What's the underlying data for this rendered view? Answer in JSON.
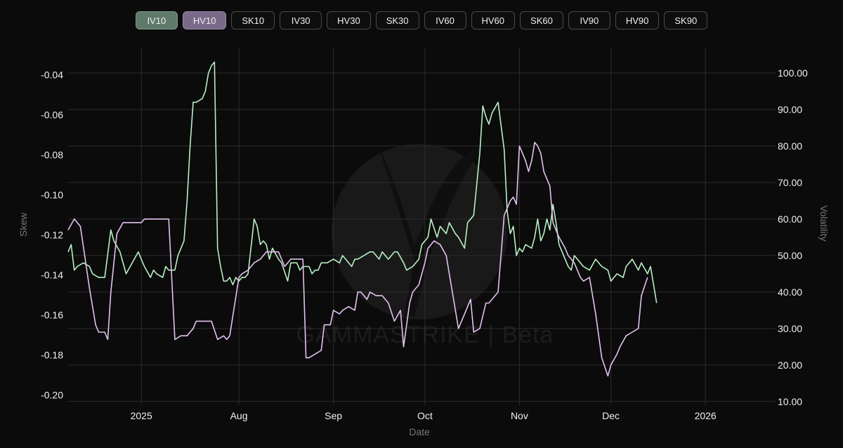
{
  "toolbar": {
    "buttons": [
      {
        "label": "IV10",
        "state": "active-iv"
      },
      {
        "label": "HV10",
        "state": "active-hv"
      },
      {
        "label": "SK10",
        "state": ""
      },
      {
        "label": "IV30",
        "state": ""
      },
      {
        "label": "HV30",
        "state": ""
      },
      {
        "label": "SK30",
        "state": ""
      },
      {
        "label": "IV60",
        "state": ""
      },
      {
        "label": "HV60",
        "state": ""
      },
      {
        "label": "SK60",
        "state": ""
      },
      {
        "label": "IV90",
        "state": ""
      },
      {
        "label": "HV90",
        "state": ""
      },
      {
        "label": "SK90",
        "state": ""
      }
    ]
  },
  "watermark": {
    "text": "GAMMASTRIKE | Beta"
  },
  "colors": {
    "background": "#0b0b0b",
    "grid": "#2c2c2c",
    "iv10": "#b8f0c4",
    "hv10": "#e3c2f0",
    "active_iv": "#5f7a6a",
    "active_hv": "#7a6a8a"
  },
  "chart_data": {
    "type": "line",
    "xlabel": "Date",
    "y_left": {
      "label": "Skew",
      "ticks": [
        "-0.04",
        "-0.06",
        "-0.08",
        "-0.10",
        "-0.12",
        "-0.14",
        "-0.16",
        "-0.18",
        "-0.20"
      ],
      "range": [
        -0.205,
        -0.03
      ]
    },
    "y_right": {
      "label": "Volatility",
      "ticks": [
        "100.00",
        "90.00",
        "80.00",
        "70.00",
        "60.00",
        "50.00",
        "40.00",
        "30.00",
        "20.00",
        "10.00"
      ],
      "range": [
        9,
        105
      ]
    },
    "x_ticks": [
      {
        "label": "2025",
        "date": "2025-06-30"
      },
      {
        "label": "Aug",
        "date": "2025-08-01"
      },
      {
        "label": "Sep",
        "date": "2025-09-01"
      },
      {
        "label": "Oct",
        "date": "2025-10-01"
      },
      {
        "label": "Nov",
        "date": "2025-11-01"
      },
      {
        "label": "Dec",
        "date": "2025-12-01"
      },
      {
        "label": "2026",
        "date": "2026-01-01"
      }
    ],
    "x_range": [
      "2025-06-06",
      "2026-01-24"
    ],
    "grid": true,
    "series": [
      {
        "name": "IV10",
        "axis": "right",
        "x": [
          "2025-06-06",
          "2025-06-07",
          "2025-06-08",
          "2025-06-09",
          "2025-06-11",
          "2025-06-13",
          "2025-06-14",
          "2025-06-16",
          "2025-06-18",
          "2025-06-20",
          "2025-06-21",
          "2025-06-23",
          "2025-06-25",
          "2025-06-27",
          "2025-06-29",
          "2025-07-01",
          "2025-07-03",
          "2025-07-04",
          "2025-07-05",
          "2025-07-07",
          "2025-07-08",
          "2025-07-09",
          "2025-07-11",
          "2025-07-12",
          "2025-07-14",
          "2025-07-15",
          "2025-07-16",
          "2025-07-17",
          "2025-07-18",
          "2025-07-20",
          "2025-07-21",
          "2025-07-22",
          "2025-07-23",
          "2025-07-24",
          "2025-07-25",
          "2025-07-26",
          "2025-07-27",
          "2025-07-28",
          "2025-07-29",
          "2025-07-30",
          "2025-07-31",
          "2025-08-01",
          "2025-08-02",
          "2025-08-03",
          "2025-08-04",
          "2025-08-06",
          "2025-08-07",
          "2025-08-08",
          "2025-08-09",
          "2025-08-10",
          "2025-08-11",
          "2025-08-12",
          "2025-08-14",
          "2025-08-15",
          "2025-08-17",
          "2025-08-18",
          "2025-08-20",
          "2025-08-21",
          "2025-08-22",
          "2025-08-24",
          "2025-08-25",
          "2025-08-26",
          "2025-08-27",
          "2025-08-28",
          "2025-08-30",
          "2025-09-01",
          "2025-09-03",
          "2025-09-04",
          "2025-09-05",
          "2025-09-07",
          "2025-09-08",
          "2025-09-09",
          "2025-09-11",
          "2025-09-13",
          "2025-09-14",
          "2025-09-16",
          "2025-09-17",
          "2025-09-19",
          "2025-09-21",
          "2025-09-22",
          "2025-09-24",
          "2025-09-25",
          "2025-09-27",
          "2025-09-29",
          "2025-09-30",
          "2025-10-02",
          "2025-10-03",
          "2025-10-05",
          "2025-10-06",
          "2025-10-08",
          "2025-10-09",
          "2025-10-11",
          "2025-10-12",
          "2025-10-14",
          "2025-10-15",
          "2025-10-17",
          "2025-10-19",
          "2025-10-20",
          "2025-10-21",
          "2025-10-22",
          "2025-10-23",
          "2025-10-25",
          "2025-10-27",
          "2025-10-28",
          "2025-10-29",
          "2025-10-30",
          "2025-10-31",
          "2025-11-01",
          "2025-11-02",
          "2025-11-03",
          "2025-11-05",
          "2025-11-06",
          "2025-11-07",
          "2025-11-08",
          "2025-11-09",
          "2025-11-10",
          "2025-11-11",
          "2025-11-12",
          "2025-11-13",
          "2025-11-14",
          "2025-11-16",
          "2025-11-17",
          "2025-11-18",
          "2025-11-19",
          "2025-11-21",
          "2025-11-22",
          "2025-11-24",
          "2025-11-26",
          "2025-11-28",
          "2025-11-30",
          "2025-12-01",
          "2025-12-03",
          "2025-12-05",
          "2025-12-06",
          "2025-12-08",
          "2025-12-10",
          "2025-12-11",
          "2025-12-13",
          "2025-12-14",
          "2025-12-16"
        ],
        "values": [
          51,
          53,
          46,
          47,
          48,
          47,
          45,
          44,
          44,
          57,
          54,
          51,
          45,
          48,
          51,
          47,
          44,
          46,
          45,
          44,
          47,
          46,
          46,
          50,
          54,
          65,
          80,
          92,
          92,
          93,
          95,
          100,
          102,
          103,
          52,
          47,
          43,
          43,
          44,
          42,
          44,
          43,
          44,
          44,
          45,
          60,
          58,
          53,
          54,
          53,
          49,
          52,
          49,
          48,
          43,
          48,
          48,
          46,
          47,
          47,
          45,
          46,
          46,
          48,
          48,
          49,
          48,
          50,
          49,
          47,
          49,
          49,
          50,
          51,
          51,
          49,
          51,
          49,
          51,
          51,
          48,
          46,
          47,
          49,
          53,
          55,
          60,
          55,
          58,
          56,
          59,
          56,
          55,
          52,
          59,
          61,
          78,
          91,
          88,
          86,
          89,
          92,
          79,
          62,
          56,
          58,
          50,
          52,
          51,
          53,
          52,
          55,
          60,
          54,
          56,
          60,
          57,
          64,
          59,
          53,
          49,
          47,
          46,
          50,
          48,
          47,
          46,
          49,
          47,
          46,
          43,
          45,
          44,
          47,
          49,
          46,
          48,
          45,
          47,
          37
        ]
      },
      {
        "name": "HV10",
        "axis": "right",
        "x": [
          "2025-06-06",
          "2025-06-08",
          "2025-06-10",
          "2025-06-13",
          "2025-06-15",
          "2025-06-16",
          "2025-06-18",
          "2025-06-19",
          "2025-06-20",
          "2025-06-22",
          "2025-06-24",
          "2025-06-26",
          "2025-06-28",
          "2025-06-30",
          "2025-07-01",
          "2025-07-03",
          "2025-07-05",
          "2025-07-06",
          "2025-07-07",
          "2025-07-09",
          "2025-07-11",
          "2025-07-13",
          "2025-07-15",
          "2025-07-17",
          "2025-07-18",
          "2025-07-20",
          "2025-07-21",
          "2025-07-23",
          "2025-07-25",
          "2025-07-27",
          "2025-07-28",
          "2025-07-29",
          "2025-08-01",
          "2025-08-02",
          "2025-08-04",
          "2025-08-06",
          "2025-08-08",
          "2025-08-10",
          "2025-08-12",
          "2025-08-14",
          "2025-08-16",
          "2025-08-18",
          "2025-08-19",
          "2025-08-22",
          "2025-08-23",
          "2025-08-24",
          "2025-08-26",
          "2025-08-28",
          "2025-08-29",
          "2025-08-31",
          "2025-09-01",
          "2025-09-03",
          "2025-09-04",
          "2025-09-06",
          "2025-09-08",
          "2025-09-09",
          "2025-09-10",
          "2025-09-12",
          "2025-09-13",
          "2025-09-15",
          "2025-09-17",
          "2025-09-19",
          "2025-09-21",
          "2025-09-23",
          "2025-09-24",
          "2025-09-26",
          "2025-09-27",
          "2025-09-29",
          "2025-10-01",
          "2025-10-02",
          "2025-10-04",
          "2025-10-06",
          "2025-10-08",
          "2025-10-10",
          "2025-10-12",
          "2025-10-14",
          "2025-10-16",
          "2025-10-17",
          "2025-10-19",
          "2025-10-21",
          "2025-10-22",
          "2025-10-24",
          "2025-10-25",
          "2025-10-27",
          "2025-10-29",
          "2025-10-30",
          "2025-10-31",
          "2025-11-01",
          "2025-11-03",
          "2025-11-04",
          "2025-11-05",
          "2025-11-06",
          "2025-11-07",
          "2025-11-08",
          "2025-11-09",
          "2025-11-11",
          "2025-11-12",
          "2025-11-14",
          "2025-11-16",
          "2025-11-17",
          "2025-11-19",
          "2025-11-21",
          "2025-11-22",
          "2025-11-24",
          "2025-11-26",
          "2025-11-28",
          "2025-11-30",
          "2025-12-01",
          "2025-12-03",
          "2025-12-04",
          "2025-12-06",
          "2025-12-08",
          "2025-12-10",
          "2025-12-11",
          "2025-12-13"
        ],
        "values": [
          57,
          60,
          58,
          41,
          31,
          29,
          29,
          27,
          40,
          56,
          59,
          59,
          59,
          59,
          60,
          60,
          60,
          60,
          60,
          60,
          27,
          28,
          28,
          30,
          32,
          32,
          32,
          32,
          27,
          28,
          27,
          28,
          44,
          45,
          46,
          48,
          49,
          51,
          51,
          51,
          47,
          49,
          49,
          49,
          22,
          22,
          23,
          24,
          31,
          31,
          35,
          34,
          35,
          36,
          35,
          40,
          40,
          38,
          40,
          39,
          39,
          37,
          32,
          35,
          25,
          37,
          40,
          42,
          48,
          52,
          54,
          53,
          50,
          40,
          30,
          34,
          38,
          29,
          30,
          37,
          37,
          39,
          40,
          61,
          65,
          66,
          64,
          80,
          76,
          73,
          76,
          81,
          80,
          78,
          73,
          69,
          59,
          55,
          52,
          50,
          48,
          44,
          43,
          44,
          34,
          22,
          17,
          20,
          23,
          25,
          28,
          29,
          30,
          39,
          44
        ]
      }
    ]
  }
}
